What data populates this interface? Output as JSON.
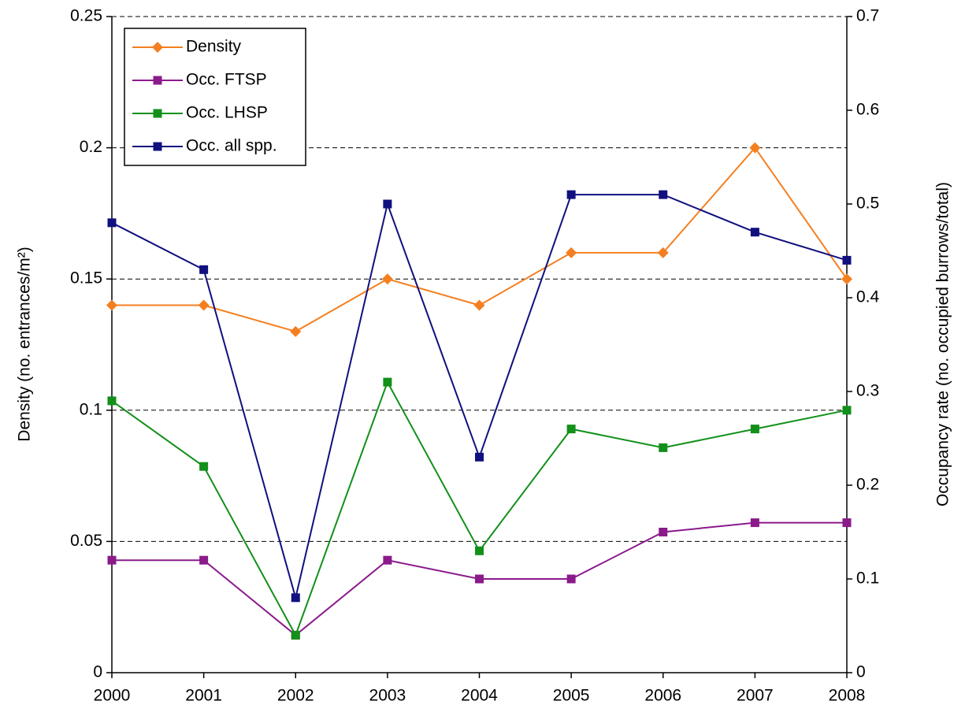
{
  "chart_data": {
    "type": "line",
    "categories": [
      "2000",
      "2001",
      "2002",
      "2003",
      "2004",
      "2005",
      "2006",
      "2007",
      "2008"
    ],
    "ylabel": "Density (no. entrances/m²)",
    "y2label": "Occupancy rate (no. occupied burrows/total)",
    "ylim": [
      0,
      0.25
    ],
    "yticks": [
      0,
      0.05,
      0.1,
      0.15,
      0.2,
      0.25
    ],
    "y2lim": [
      0,
      0.7
    ],
    "y2ticks": [
      0,
      0.1,
      0.2,
      0.3,
      0.4,
      0.5,
      0.6,
      0.7
    ],
    "grid": true,
    "legend": "upper left",
    "series": [
      {
        "name": "Density",
        "color": "#f47f20",
        "marker": "diamond",
        "values": [
          0.14,
          0.14,
          0.13,
          0.15,
          0.14,
          0.16,
          0.16,
          0.2,
          0.15
        ]
      },
      {
        "name": "Occ. FTSP",
        "color": "#8b1a8b",
        "marker": "square",
        "axis": "y2",
        "values": [
          0.12,
          0.12,
          0.04,
          0.12,
          0.1,
          0.1,
          0.15,
          0.16,
          0.16
        ]
      },
      {
        "name": "Occ. LHSP",
        "color": "#12901a",
        "marker": "square",
        "axis": "y2",
        "values": [
          0.29,
          0.22,
          0.04,
          0.31,
          0.13,
          0.26,
          0.24,
          0.26,
          0.28
        ]
      },
      {
        "name": "Occ. all spp.",
        "color": "#10107f",
        "marker": "square",
        "axis": "y2",
        "values": [
          0.48,
          0.43,
          0.08,
          0.5,
          0.23,
          0.51,
          0.51,
          0.47,
          0.44
        ]
      }
    ]
  }
}
